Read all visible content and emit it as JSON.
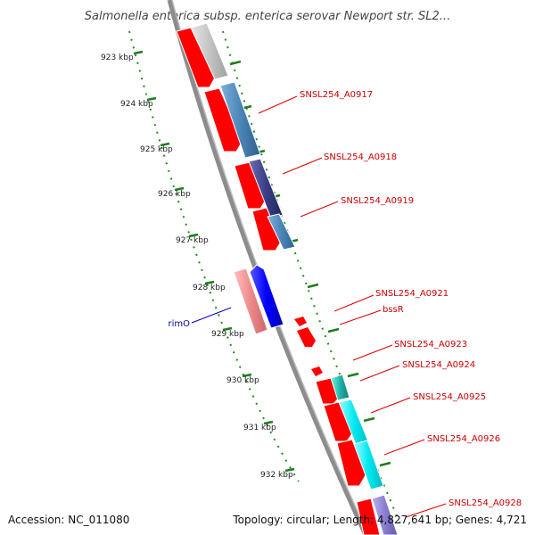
{
  "title": "Salmonella enterica subsp. enterica serovar Newport str. SL2...",
  "footer": {
    "accession": "Accession: NC_011080",
    "stats": "Topology: circular; Length: 4,827,641 bp; Genes: 4,721"
  },
  "ticks": [
    "923 kbp",
    "924 kbp",
    "925 kbp",
    "926 kbp",
    "927 kbp",
    "928 kbp",
    "929 kbp",
    "930 kbp",
    "931 kbp",
    "932 kbp"
  ],
  "colors": {
    "backbone": "#8c8c8c",
    "tick_marks": "#1e7d1e",
    "forward_cds": "#ff0000",
    "reverse_cds": "#0000ff",
    "label_forward": "#cc0000",
    "label_reverse": "#000099"
  },
  "genes": [
    {
      "label": "SNSL254_A0917",
      "color": "#4a86b8"
    },
    {
      "label": "SNSL254_A0918",
      "color": "#3a4a8a"
    },
    {
      "label": "SNSL254_A0919",
      "color": "#4a86b8"
    },
    {
      "label": "SNSL254_A0921",
      "color": "#ff0000"
    },
    {
      "label": "bssR",
      "color": "#ff0000"
    },
    {
      "label": "SNSL254_A0923",
      "color": "#ff0000"
    },
    {
      "label": "SNSL254_A0924",
      "color": "#20b2aa"
    },
    {
      "label": "SNSL254_A0925",
      "color": "#00e5ee"
    },
    {
      "label": "SNSL254_A0926",
      "color": "#00e5ee"
    },
    {
      "label": "SNSL254_A0928",
      "color": "#8a7fd0"
    },
    {
      "label": "rimO",
      "color": "#ff8888"
    }
  ]
}
